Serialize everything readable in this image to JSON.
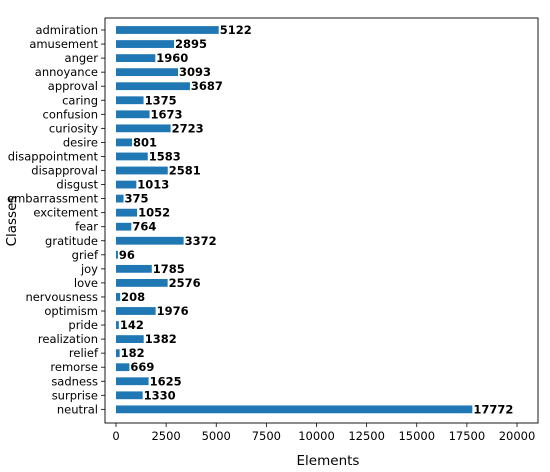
{
  "chart_data": {
    "type": "bar",
    "orientation": "horizontal",
    "xlabel": "Elements",
    "ylabel": "Classes",
    "xlim": [
      0,
      21000
    ],
    "xticks": [
      0,
      2500,
      5000,
      7500,
      10000,
      12500,
      15000,
      17500,
      20000
    ],
    "xtick_labels": [
      "0",
      "2500",
      "5000",
      "7500",
      "10000",
      "12500",
      "15000",
      "17500",
      "20000"
    ],
    "grid": false,
    "bar_color": "#1f77b4",
    "categories": [
      "admiration",
      "amusement",
      "anger",
      "annoyance",
      "approval",
      "caring",
      "confusion",
      "curiosity",
      "desire",
      "disappointment",
      "disapproval",
      "disgust",
      "embarrassment",
      "excitement",
      "fear",
      "gratitude",
      "grief",
      "joy",
      "love",
      "nervousness",
      "optimism",
      "pride",
      "realization",
      "relief",
      "remorse",
      "sadness",
      "surprise",
      "neutral"
    ],
    "values": [
      5122,
      2895,
      1960,
      3093,
      3687,
      1375,
      1673,
      2723,
      801,
      1583,
      2581,
      1013,
      375,
      1052,
      764,
      3372,
      96,
      1785,
      2576,
      208,
      1976,
      142,
      1382,
      182,
      669,
      1625,
      1330,
      17772
    ],
    "value_labels": [
      "5122",
      "2895",
      "1960",
      "3093",
      "3687",
      "1375",
      "1673",
      "2723",
      "801",
      "1583",
      "2581",
      "1013",
      "375",
      "1052",
      "764",
      "3372",
      "96",
      "1785",
      "2576",
      "208",
      "1976",
      "142",
      "1382",
      "182",
      "669",
      "1625",
      "1330",
      "17772"
    ]
  }
}
